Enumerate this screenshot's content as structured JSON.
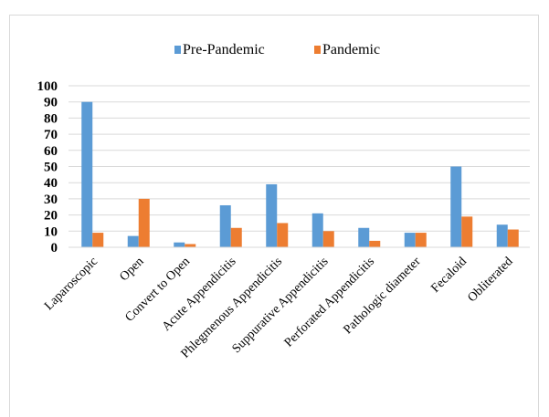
{
  "header_text": "",
  "chart_data": {
    "type": "bar",
    "categories": [
      "Laparoscopic",
      "Open",
      "Convert to Open",
      "Acute Appendicitis",
      "Phlegmenous Appendicitis",
      "Suppurative Appendicitis",
      "Perforated Appendicitis",
      "Pathologic diameter",
      "Fecaloid",
      "Obliterated"
    ],
    "series": [
      {
        "name": "Pre-Pandemic",
        "color": "#5b9bd5",
        "values": [
          90,
          7,
          3,
          26,
          39,
          21,
          12,
          9,
          50,
          14
        ]
      },
      {
        "name": "Pandemic",
        "color": "#ed7d31",
        "values": [
          9,
          30,
          2,
          12,
          15,
          10,
          4,
          9,
          19,
          11
        ]
      }
    ],
    "title": "",
    "xlabel": "",
    "ylabel": "",
    "ylim": [
      0,
      100
    ],
    "yticks": [
      0,
      10,
      20,
      30,
      40,
      50,
      60,
      70,
      80,
      90,
      100
    ],
    "grid": true,
    "legend_position": "top-center"
  }
}
